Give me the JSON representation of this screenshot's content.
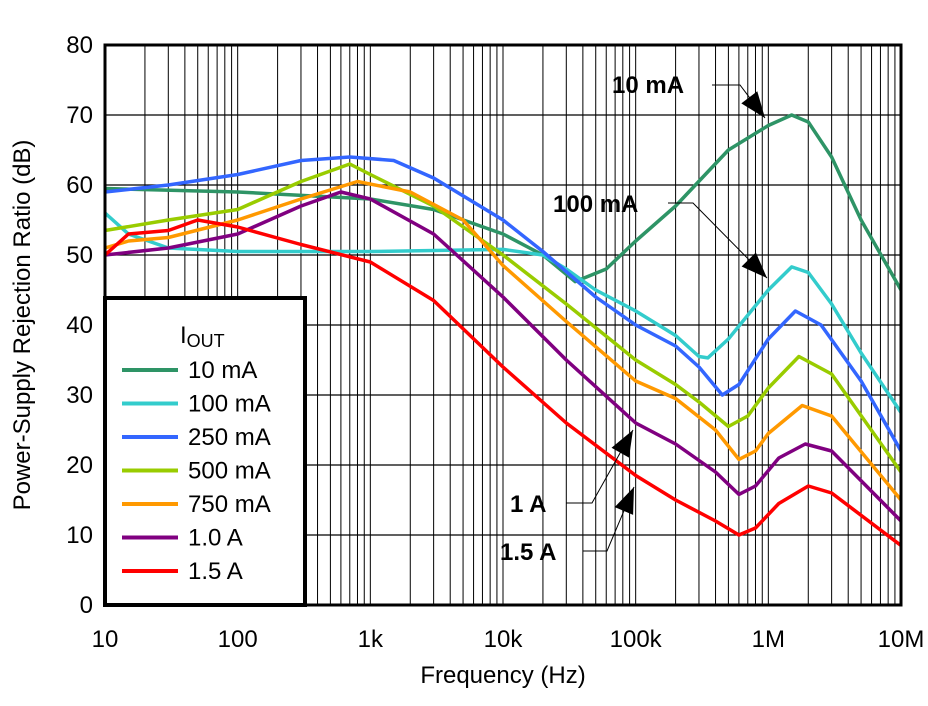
{
  "chart_data": {
    "type": "line",
    "title": "",
    "xlabel": "Frequency (Hz)",
    "ylabel": "Power-Supply Rejection Ratio (dB)",
    "xscale": "log",
    "xlim": [
      10,
      10000000
    ],
    "ylim": [
      0,
      80
    ],
    "grid": true,
    "x_tick_values": [
      10,
      100,
      1000,
      10000,
      100000,
      1000000,
      10000000
    ],
    "x_tick_labels": [
      "10",
      "100",
      "1k",
      "10k",
      "100k",
      "1M",
      "10M"
    ],
    "y_tick_values": [
      0,
      10,
      20,
      30,
      40,
      50,
      60,
      70,
      80
    ],
    "y_tick_labels": [
      "0",
      "10",
      "20",
      "30",
      "40",
      "50",
      "60",
      "70",
      "80"
    ],
    "legend": {
      "placement": "bottom-left",
      "title_main": "I",
      "title_sub": "OUT"
    },
    "series": [
      {
        "name": "10 mA",
        "color": "#2e9466",
        "x": [
          10,
          100,
          1000,
          3000,
          10000,
          20000,
          35000,
          60000,
          100000,
          200000,
          500000,
          1000000,
          1500000,
          2000000,
          3000000,
          5000000,
          10000000
        ],
        "y": [
          59.5,
          59,
          58,
          56.5,
          53,
          50,
          46.2,
          48,
          52,
          57,
          65,
          68.5,
          70,
          69,
          64,
          55,
          45
        ]
      },
      {
        "name": "100 mA",
        "color": "#33cccc",
        "x": [
          10,
          15,
          30,
          100,
          1000,
          10000,
          20000,
          30000,
          50000,
          100000,
          200000,
          300000,
          350000,
          500000,
          1000000,
          1500000,
          2000000,
          3000000,
          5000000,
          10000000
        ],
        "y": [
          56,
          53,
          51,
          50.5,
          50.5,
          50.8,
          50,
          48,
          45,
          42,
          38.5,
          35.5,
          35.3,
          38,
          45,
          48.3,
          47.5,
          43,
          36,
          27.5
        ]
      },
      {
        "name": "250 mA",
        "color": "#3366ff",
        "x": [
          10,
          30,
          100,
          300,
          700,
          1500,
          3000,
          10000,
          20000,
          50000,
          100000,
          200000,
          300000,
          450000,
          600000,
          1000000,
          1600000,
          2500000,
          5000000,
          10000000
        ],
        "y": [
          59,
          60,
          61.5,
          63.5,
          64,
          63.5,
          61,
          55,
          50.5,
          44,
          40,
          37,
          34,
          30,
          31.5,
          38,
          42,
          40,
          32,
          22
        ]
      },
      {
        "name": "500 mA",
        "color": "#99cc00",
        "x": [
          10,
          30,
          100,
          300,
          700,
          1000,
          3000,
          10000,
          30000,
          100000,
          200000,
          300000,
          500000,
          700000,
          1000000,
          1700000,
          3000000,
          10000000
        ],
        "y": [
          53.5,
          55,
          56.5,
          60.5,
          63,
          61.5,
          57,
          50,
          43,
          35,
          31.5,
          29,
          25.5,
          27,
          31,
          35.5,
          33,
          19
        ]
      },
      {
        "name": "750 mA",
        "color": "#ff9900",
        "x": [
          10,
          15,
          30,
          100,
          300,
          800,
          2000,
          5000,
          10000,
          30000,
          100000,
          200000,
          400000,
          600000,
          800000,
          1000000,
          1800000,
          3000000,
          10000000
        ],
        "y": [
          51,
          52,
          52.5,
          55,
          58,
          60.5,
          59,
          55,
          48.5,
          40.5,
          32,
          29.5,
          25,
          20.8,
          22,
          24.5,
          28.5,
          27,
          15
        ]
      },
      {
        "name": "1.0 A",
        "color": "#800080",
        "x": [
          10,
          30,
          100,
          300,
          600,
          1000,
          3000,
          10000,
          30000,
          100000,
          200000,
          400000,
          600000,
          800000,
          1200000,
          1900000,
          3000000,
          10000000
        ],
        "y": [
          50,
          51,
          53,
          57,
          59,
          58,
          53,
          44,
          35,
          26,
          23,
          19,
          15.8,
          17,
          21,
          23,
          22,
          12
        ]
      },
      {
        "name": "1.5 A",
        "color": "#ff0000",
        "x": [
          10,
          15,
          30,
          50,
          100,
          300,
          1000,
          3000,
          10000,
          30000,
          100000,
          200000,
          400000,
          600000,
          800000,
          1200000,
          2000000,
          3000000,
          10000000
        ],
        "y": [
          50,
          53,
          53.5,
          55,
          54,
          51.5,
          49,
          43.5,
          34,
          26,
          18.5,
          15,
          12,
          10,
          11,
          14.5,
          17,
          16,
          8.5
        ]
      }
    ],
    "annotations": [
      {
        "text": "10 mA",
        "series": "10 mA",
        "at_x": 1500000,
        "at_y": 70
      },
      {
        "text": "100 mA",
        "series": "100 mA",
        "at_x": 1450000,
        "at_y": 48
      },
      {
        "text": "1 A",
        "series": "1.0 A",
        "at_x": 100000,
        "at_y": 26
      },
      {
        "text": "1.5 A",
        "series": "1.5 A",
        "at_x": 100000,
        "at_y": 18
      }
    ]
  }
}
